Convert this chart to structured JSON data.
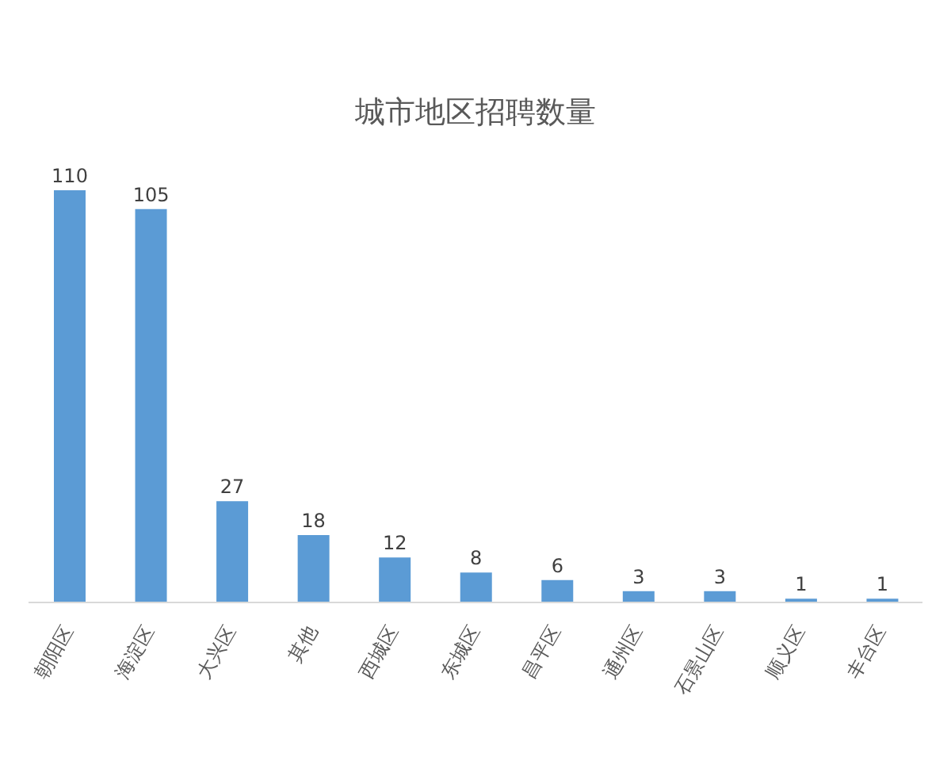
{
  "chart_data": {
    "type": "bar",
    "title": "城市地区招聘数量",
    "categories": [
      "朝阳区",
      "海淀区",
      "大兴区",
      "其他",
      "西城区",
      "东城区",
      "昌平区",
      "通州区",
      "石景山区",
      "顺义区",
      "丰台区"
    ],
    "values": [
      110,
      105,
      27,
      18,
      12,
      8,
      6,
      3,
      3,
      1,
      1
    ],
    "color": "#5b9bd5",
    "data_labels": true,
    "grid": false,
    "legend": false
  }
}
